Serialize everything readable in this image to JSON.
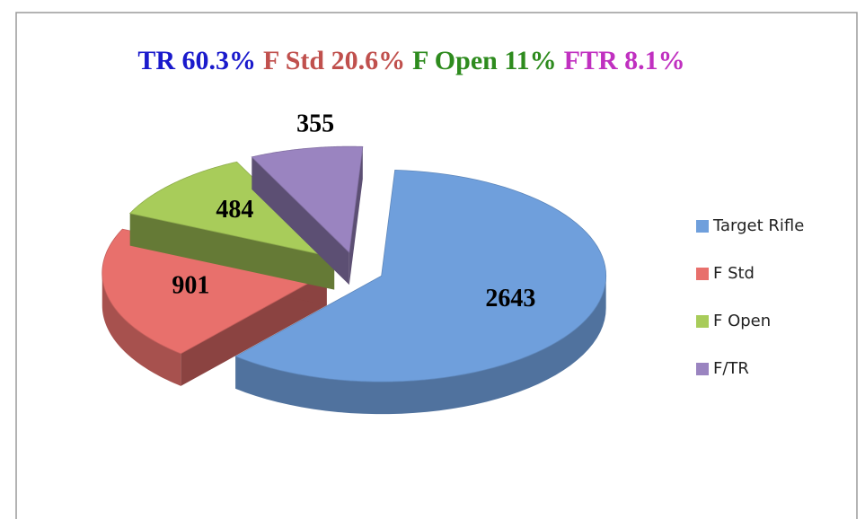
{
  "chart_data": {
    "type": "pie3d",
    "title_parts": [
      {
        "text": "TR 60.3%",
        "color": "#1a1acc"
      },
      {
        "text": "F Std 20.6%",
        "color": "#c0504d"
      },
      {
        "text": "F Open 11%",
        "color": "#2e8b1e"
      },
      {
        "text": "FTR 8.1%",
        "color": "#c030c0"
      }
    ],
    "categories": [
      "Target Rifle",
      "F Std",
      "F Open",
      "F/TR"
    ],
    "values": [
      2643,
      901,
      484,
      355
    ],
    "colors": [
      "#6f9fdc",
      "#e8706c",
      "#a8cc5a",
      "#9a84c0"
    ],
    "legend": "right"
  }
}
